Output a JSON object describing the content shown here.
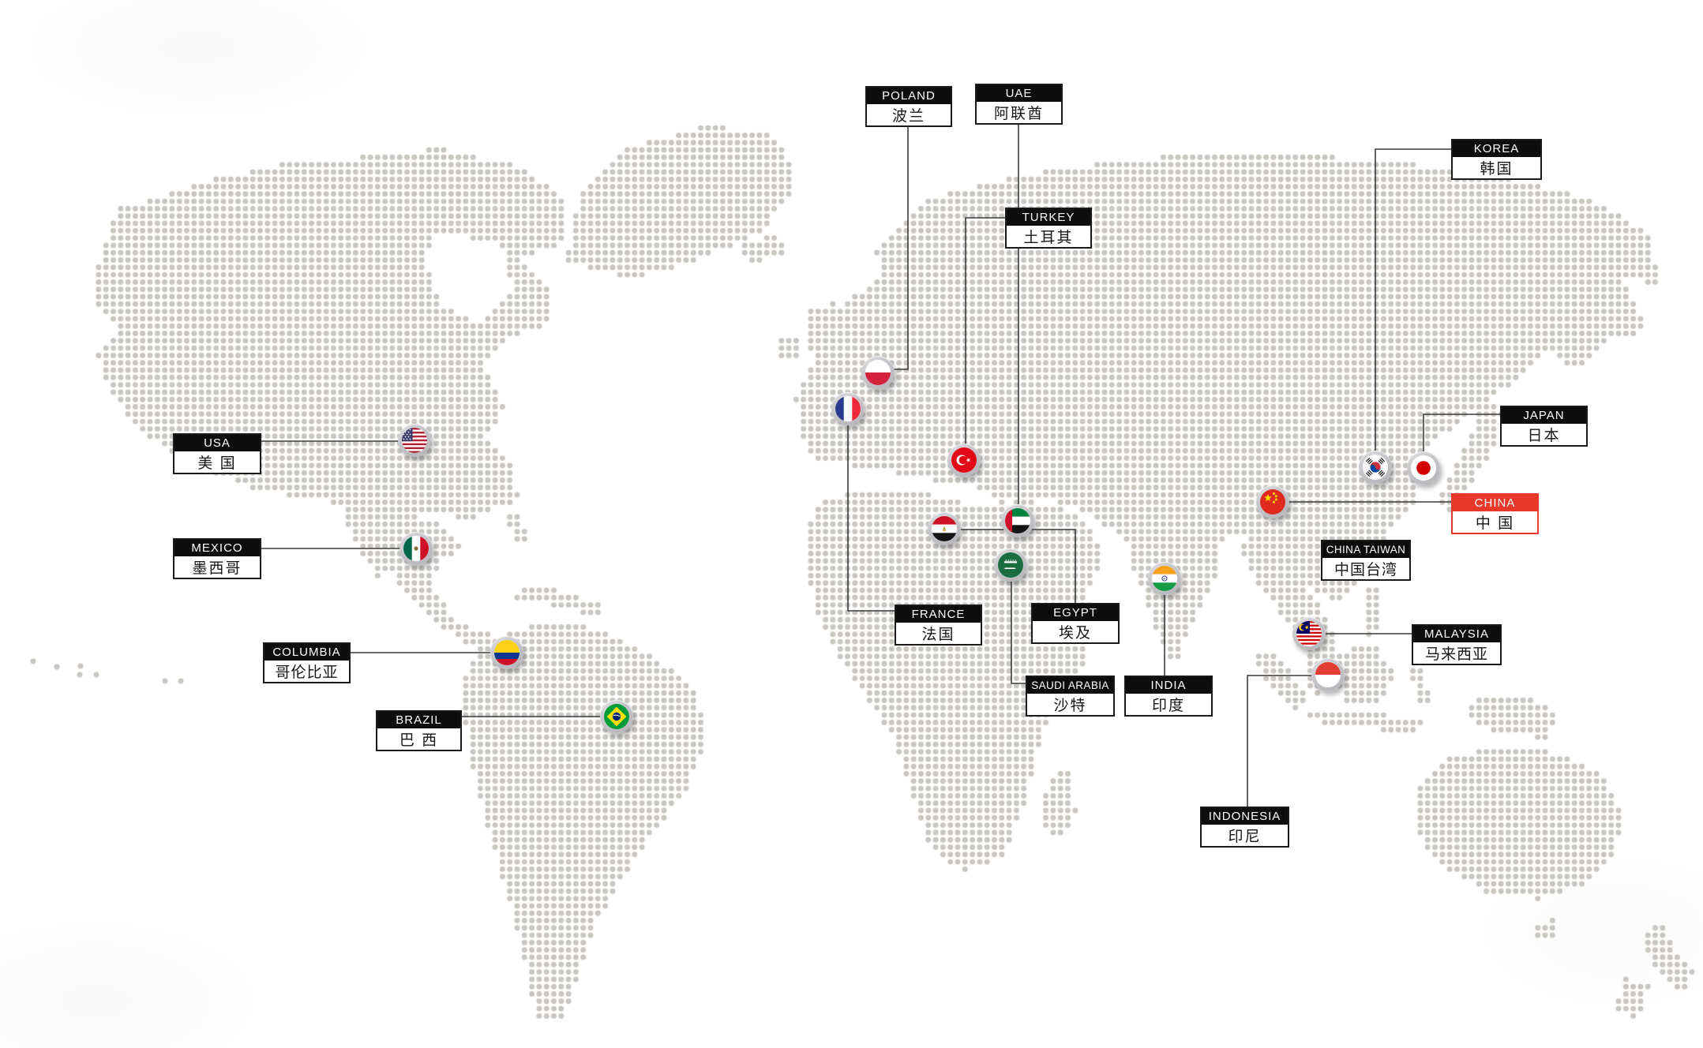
{
  "map": {
    "dot_color": "#c9c5c1",
    "connector_color": "#3d3d3d",
    "background": "#ffffff"
  },
  "colors": {
    "label_header_bg": "#0d0d0d",
    "label_header_text": "#ffffff",
    "label_body_bg": "#ffffff",
    "label_body_text": "#161616",
    "label_border": "#1a1a1a",
    "highlight_red": "#e8382b"
  },
  "countries": [
    {
      "id": "usa",
      "name_en": "USA",
      "name_zh": "美 国",
      "flag": "usa",
      "highlighted": false,
      "has_pin": true
    },
    {
      "id": "mexico",
      "name_en": "MEXICO",
      "name_zh": "墨西哥",
      "flag": "mexico",
      "highlighted": false,
      "has_pin": true
    },
    {
      "id": "columbia",
      "name_en": "COLUMBIA",
      "name_zh": "哥伦比亚",
      "flag": "columbia",
      "highlighted": false,
      "has_pin": true
    },
    {
      "id": "brazil",
      "name_en": "BRAZIL",
      "name_zh": "巴 西",
      "flag": "brazil",
      "highlighted": false,
      "has_pin": true
    },
    {
      "id": "poland",
      "name_en": "POLAND",
      "name_zh": "波兰",
      "flag": "poland",
      "highlighted": false,
      "has_pin": true
    },
    {
      "id": "france",
      "name_en": "FRANCE",
      "name_zh": "法国",
      "flag": "france",
      "highlighted": false,
      "has_pin": true
    },
    {
      "id": "turkey",
      "name_en": "TURKEY",
      "name_zh": "土耳其",
      "flag": "turkey",
      "highlighted": false,
      "has_pin": true
    },
    {
      "id": "egypt",
      "name_en": "EGYPT",
      "name_zh": "埃及",
      "flag": "egypt",
      "highlighted": false,
      "has_pin": true
    },
    {
      "id": "uae",
      "name_en": "UAE",
      "name_zh": "阿联酋",
      "flag": "uae",
      "highlighted": false,
      "has_pin": true
    },
    {
      "id": "saudi_arabia",
      "name_en": "SAUDI ARABIA",
      "name_zh": "沙特",
      "flag": "saudi_arabia",
      "highlighted": false,
      "has_pin": true
    },
    {
      "id": "india",
      "name_en": "INDIA",
      "name_zh": "印度",
      "flag": "india",
      "highlighted": false,
      "has_pin": true
    },
    {
      "id": "china",
      "name_en": "CHINA",
      "name_zh": "中 国",
      "flag": "china",
      "highlighted": true,
      "has_pin": true
    },
    {
      "id": "china_taiwan",
      "name_en": "CHINA TAIWAN",
      "name_zh": "中国台湾",
      "flag": "",
      "highlighted": false,
      "has_pin": false
    },
    {
      "id": "korea",
      "name_en": "KOREA",
      "name_zh": "韩国",
      "flag": "korea",
      "highlighted": false,
      "has_pin": true
    },
    {
      "id": "japan",
      "name_en": "JAPAN",
      "name_zh": "日本",
      "flag": "japan",
      "highlighted": false,
      "has_pin": true
    },
    {
      "id": "malaysia",
      "name_en": "MALAYSIA",
      "name_zh": "马来西亚",
      "flag": "malaysia",
      "highlighted": false,
      "has_pin": true
    },
    {
      "id": "indonesia",
      "name_en": "INDONESIA",
      "name_zh": "印尼",
      "flag": "indonesia",
      "highlighted": false,
      "has_pin": true
    }
  ]
}
